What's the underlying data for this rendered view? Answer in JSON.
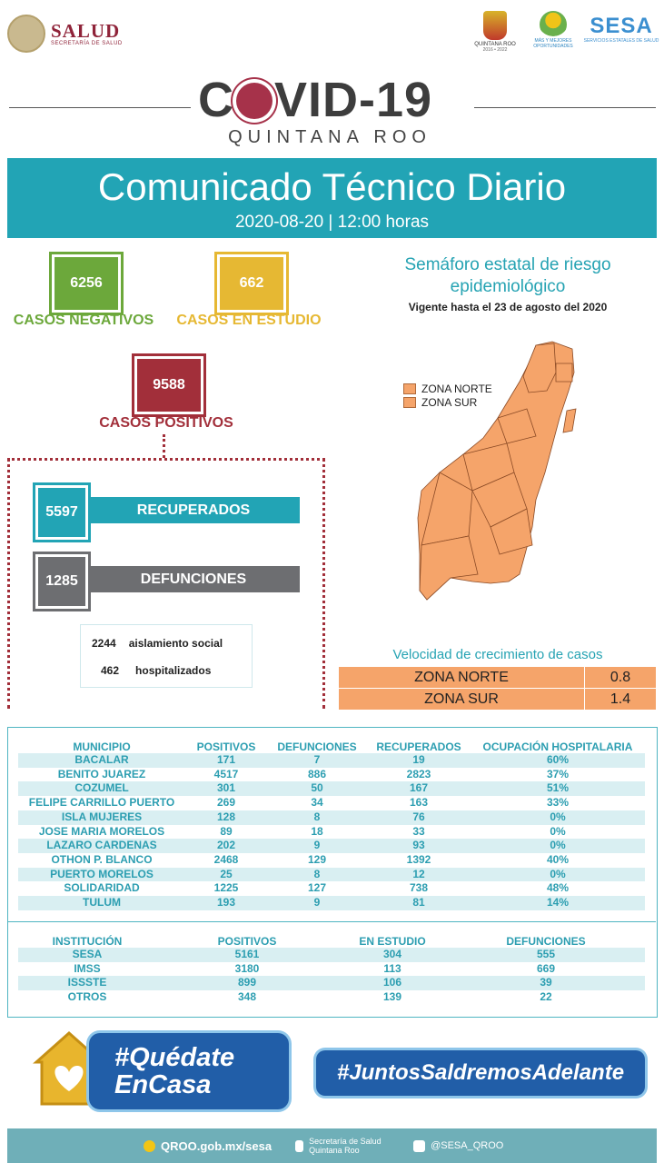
{
  "header": {
    "salud_title": "SALUD",
    "salud_subtitle": "SECRETARÍA DE SALUD",
    "logo_qroo": "QUINTANA ROO",
    "logo_qroo_years": "2016 • 2022",
    "logo_oportunidades": "MÁS Y MEJORES OPORTUNIDADES",
    "sesa_title": "SESA",
    "sesa_subtitle": "SERVICIOS ESTATALES DE SALUD"
  },
  "title": {
    "covid_left": "C",
    "covid_right": "VID-19",
    "subtitle": "QUINTANA ROO"
  },
  "banner": {
    "title": "Comunicado Técnico Diario",
    "date": "2020-08-20 | 12:00 horas"
  },
  "stats": {
    "negativos_value": "6256",
    "negativos_label": "CASOS NEGATIVOS",
    "estudio_value": "662",
    "estudio_label": "CASOS EN ESTUDIO",
    "positivos_value": "9588",
    "positivos_label": "CASOS POSITIVOS",
    "recuperados_value": "5597",
    "recuperados_label": "RECUPERADOS",
    "defunciones_value": "1285",
    "defunciones_label": "DEFUNCIONES",
    "aislamiento_value": "2244",
    "aislamiento_label": "aislamiento social",
    "hospitalizados_value": "462",
    "hospitalizados_label": "hospitalizados"
  },
  "colors": {
    "green": "#6ca83b",
    "yellow": "#e6b833",
    "red": "#a22f3a",
    "teal": "#22a4b5",
    "gray": "#6d6e71",
    "orange": "#f5a46a"
  },
  "semaforo": {
    "title": "Semáforo estatal de riesgo epidemiológico",
    "vigencia": "Vigente hasta el 23 de agosto del 2020",
    "legend_norte": "ZONA NORTE",
    "legend_sur": "ZONA SUR"
  },
  "velocidad": {
    "title": "Velocidad de crecimiento de casos",
    "rows": [
      {
        "zona": "ZONA NORTE",
        "valor": "0.8"
      },
      {
        "zona": "ZONA SUR",
        "valor": "1.4"
      }
    ]
  },
  "municipios": {
    "headers": [
      "MUNICIPIO",
      "POSITIVOS",
      "DEFUNCIONES",
      "RECUPERADOS",
      "OCUPACIÓN HOSPITALARIA"
    ],
    "rows": [
      [
        "BACALAR",
        "171",
        "7",
        "19",
        "60%"
      ],
      [
        "BENITO JUAREZ",
        "4517",
        "886",
        "2823",
        "37%"
      ],
      [
        "COZUMEL",
        "301",
        "50",
        "167",
        "51%"
      ],
      [
        "FELIPE CARRILLO PUERTO",
        "269",
        "34",
        "163",
        "33%"
      ],
      [
        "ISLA MUJERES",
        "128",
        "8",
        "76",
        "0%"
      ],
      [
        "JOSE MARIA MORELOS",
        "89",
        "18",
        "33",
        "0%"
      ],
      [
        "LAZARO CARDENAS",
        "202",
        "9",
        "93",
        "0%"
      ],
      [
        "OTHON P. BLANCO",
        "2468",
        "129",
        "1392",
        "40%"
      ],
      [
        "PUERTO MORELOS",
        "25",
        "8",
        "12",
        "0%"
      ],
      [
        "SOLIDARIDAD",
        "1225",
        "127",
        "738",
        "48%"
      ],
      [
        "TULUM",
        "193",
        "9",
        "81",
        "14%"
      ]
    ]
  },
  "instituciones": {
    "headers": [
      "INSTITUCIÓN",
      "POSITIVOS",
      "EN ESTUDIO",
      "DEFUNCIONES"
    ],
    "rows": [
      [
        "SESA",
        "5161",
        "304",
        "555"
      ],
      [
        "IMSS",
        "3180",
        "113",
        "669"
      ],
      [
        "ISSSTE",
        "899",
        "106",
        "39"
      ],
      [
        "OTROS",
        "348",
        "139",
        "22"
      ]
    ]
  },
  "campaign": {
    "quedate_line1": "#Quédate",
    "quedate_line2": "EnCasa",
    "juntos": "#JuntosSaldremosAdelante"
  },
  "footer": {
    "web": "QROO.gob.mx/sesa",
    "facebook": "Secretaría de Salud Quintana Roo",
    "twitter": "@SESA_QROO"
  }
}
